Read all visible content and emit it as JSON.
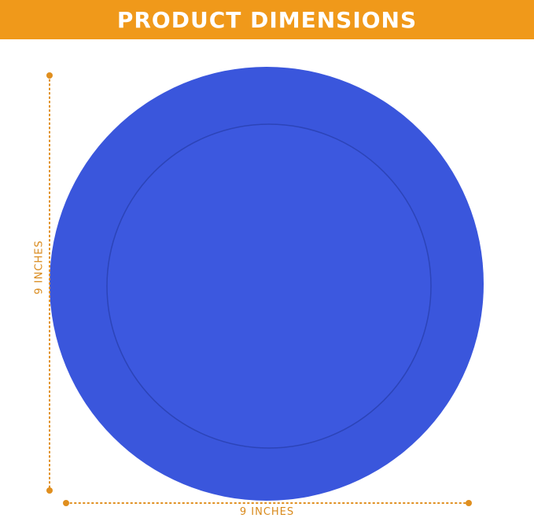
{
  "header": {
    "title": "PRODUCT DIMENSIONS"
  },
  "dimensions": {
    "height_label": "9 INCHES",
    "width_label": "9 INCHES"
  },
  "colors": {
    "banner": "#f0991a",
    "plate": "#3a56dc",
    "dimension_lines": "#e08f1f"
  }
}
